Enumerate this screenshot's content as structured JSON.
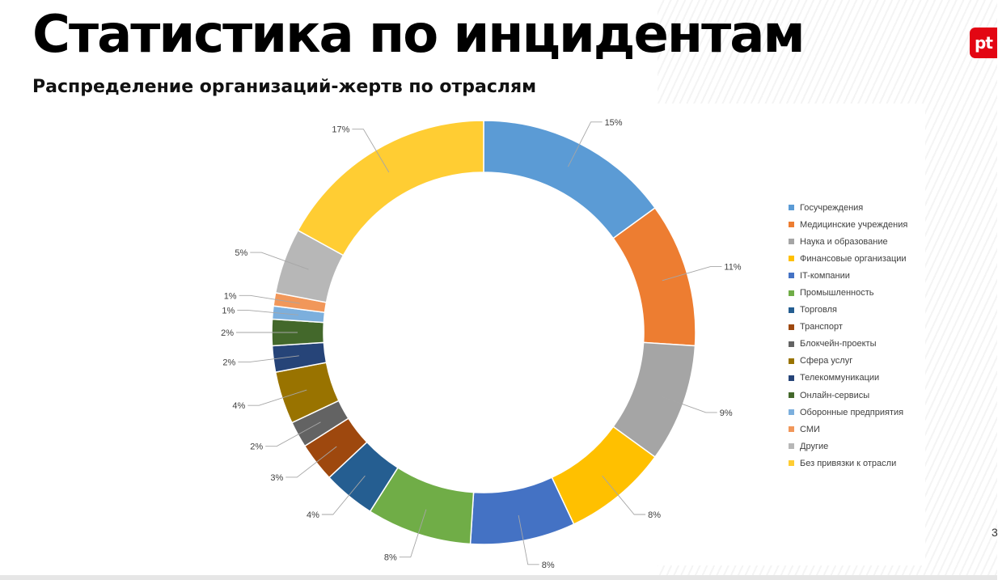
{
  "slide": {
    "title": "Статистика по инцидентам",
    "subtitle": "Распределение организаций-жертв по отраслям",
    "logo_text": "pt",
    "page_number": "3"
  },
  "chart_data": {
    "type": "pie",
    "variant": "donut",
    "legend_position": "right",
    "categories": [
      "Госучреждения",
      "Медицинские учреждения",
      "Наука и образование",
      "Финансовые организации",
      "IT-компании",
      "Промышленность",
      "Торговля",
      "Транспорт",
      "Блокчейн-проекты",
      "Сфера услуг",
      "Телекоммуникации",
      "Онлайн-сервисы",
      "Оборонные предприятия",
      "СМИ",
      "Другие",
      "Без привязки к отрасли"
    ],
    "values": [
      15,
      11,
      9,
      8,
      8,
      8,
      4,
      3,
      2,
      4,
      2,
      2,
      1,
      1,
      5,
      17
    ],
    "data_labels": [
      "15%",
      "11%",
      "9%",
      "8%",
      "8%",
      "8%",
      "4%",
      "3%",
      "2%",
      "4%",
      "2%",
      "2%",
      "1%",
      "1%",
      "5%",
      "17%"
    ],
    "colors": [
      "#5B9BD5",
      "#ED7D31",
      "#A5A5A5",
      "#FFC000",
      "#4472C4",
      "#70AD47",
      "#255E91",
      "#9E480E",
      "#636363",
      "#997300",
      "#264478",
      "#43682B",
      "#7CAFDD",
      "#F1975A",
      "#B7B7B7",
      "#FFCD33"
    ]
  }
}
